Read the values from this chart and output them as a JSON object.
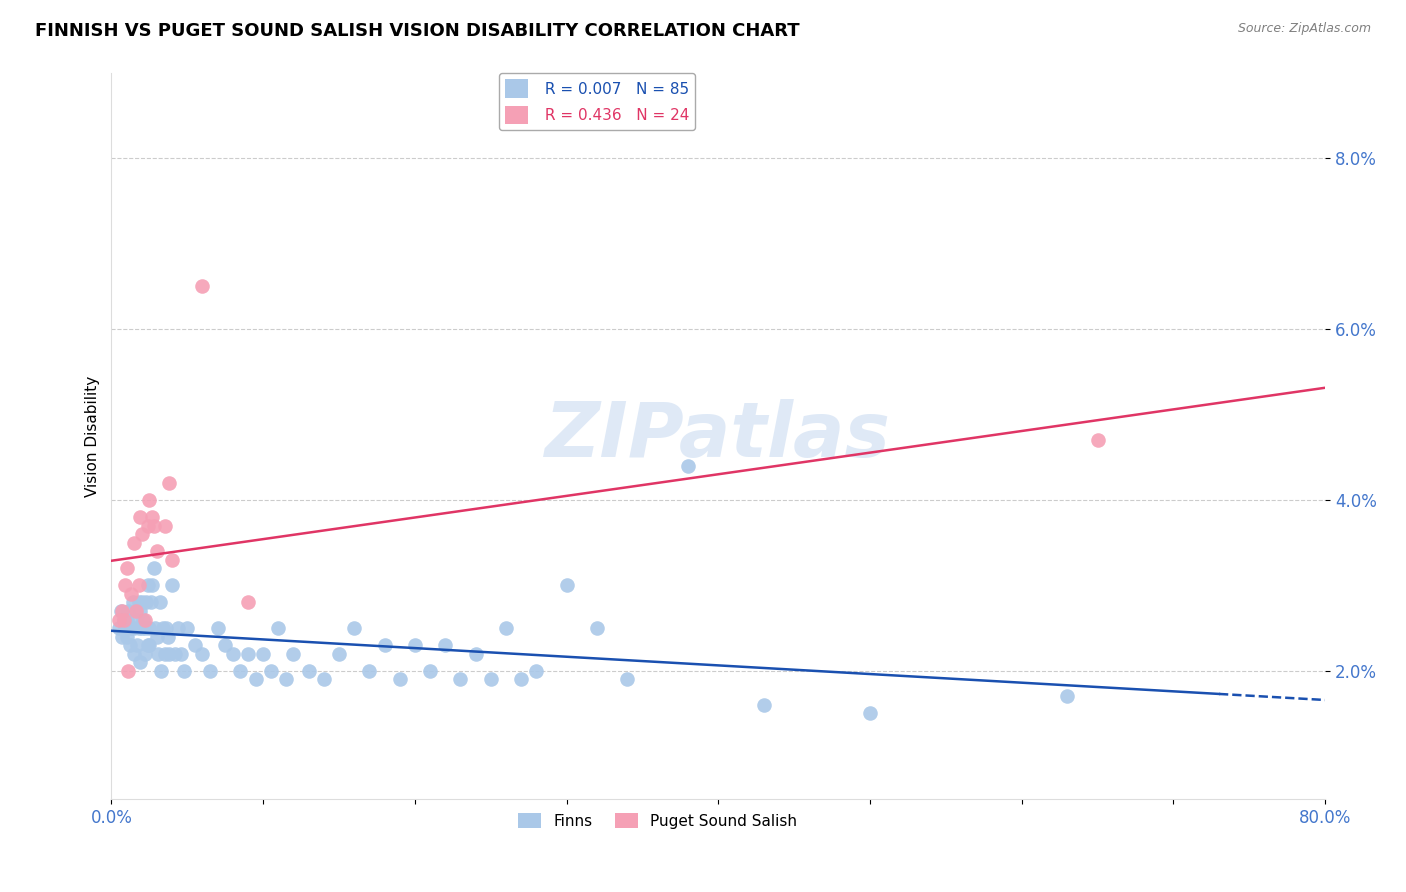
{
  "title": "FINNISH VS PUGET SOUND SALISH VISION DISABILITY CORRELATION CHART",
  "source": "Source: ZipAtlas.com",
  "ylabel": "Vision Disability",
  "xlim": [
    0.0,
    0.8
  ],
  "ylim": [
    0.005,
    0.09
  ],
  "yticks": [
    0.02,
    0.04,
    0.06,
    0.08
  ],
  "ytick_labels": [
    "2.0%",
    "4.0%",
    "6.0%",
    "8.0%"
  ],
  "xticks": [
    0.0,
    0.1,
    0.2,
    0.3,
    0.4,
    0.5,
    0.6,
    0.7,
    0.8
  ],
  "xtick_labels": [
    "0.0%",
    "",
    "",
    "",
    "",
    "",
    "",
    "",
    "80.0%"
  ],
  "blue_R": 0.007,
  "blue_N": 85,
  "pink_R": 0.436,
  "pink_N": 24,
  "blue_color": "#aac8e8",
  "pink_color": "#f5a0b5",
  "blue_line_color": "#1a50b0",
  "pink_line_color": "#e03565",
  "axis_color": "#4477cc",
  "watermark": "ZIPatlas",
  "blue_x": [
    0.005,
    0.006,
    0.007,
    0.008,
    0.009,
    0.01,
    0.01,
    0.011,
    0.012,
    0.013,
    0.014,
    0.015,
    0.015,
    0.016,
    0.017,
    0.018,
    0.018,
    0.019,
    0.019,
    0.02,
    0.02,
    0.021,
    0.022,
    0.022,
    0.023,
    0.024,
    0.024,
    0.025,
    0.025,
    0.026,
    0.027,
    0.028,
    0.029,
    0.03,
    0.031,
    0.032,
    0.033,
    0.034,
    0.035,
    0.036,
    0.037,
    0.038,
    0.04,
    0.042,
    0.044,
    0.046,
    0.048,
    0.05,
    0.055,
    0.06,
    0.065,
    0.07,
    0.075,
    0.08,
    0.085,
    0.09,
    0.095,
    0.1,
    0.105,
    0.11,
    0.115,
    0.12,
    0.13,
    0.14,
    0.15,
    0.16,
    0.17,
    0.18,
    0.19,
    0.2,
    0.21,
    0.22,
    0.23,
    0.24,
    0.25,
    0.26,
    0.27,
    0.28,
    0.3,
    0.32,
    0.34,
    0.38,
    0.43,
    0.5,
    0.63
  ],
  "blue_y": [
    0.025,
    0.027,
    0.024,
    0.026,
    0.025,
    0.026,
    0.024,
    0.027,
    0.023,
    0.025,
    0.028,
    0.025,
    0.022,
    0.026,
    0.023,
    0.028,
    0.025,
    0.027,
    0.021,
    0.025,
    0.028,
    0.026,
    0.025,
    0.022,
    0.028,
    0.03,
    0.023,
    0.025,
    0.023,
    0.028,
    0.03,
    0.032,
    0.025,
    0.024,
    0.022,
    0.028,
    0.02,
    0.025,
    0.022,
    0.025,
    0.024,
    0.022,
    0.03,
    0.022,
    0.025,
    0.022,
    0.02,
    0.025,
    0.023,
    0.022,
    0.02,
    0.025,
    0.023,
    0.022,
    0.02,
    0.022,
    0.019,
    0.022,
    0.02,
    0.025,
    0.019,
    0.022,
    0.02,
    0.019,
    0.022,
    0.025,
    0.02,
    0.023,
    0.019,
    0.023,
    0.02,
    0.023,
    0.019,
    0.022,
    0.019,
    0.025,
    0.019,
    0.02,
    0.03,
    0.025,
    0.019,
    0.044,
    0.016,
    0.015,
    0.017
  ],
  "pink_x": [
    0.005,
    0.007,
    0.008,
    0.009,
    0.01,
    0.011,
    0.013,
    0.015,
    0.016,
    0.018,
    0.019,
    0.02,
    0.022,
    0.024,
    0.025,
    0.027,
    0.028,
    0.03,
    0.035,
    0.038,
    0.04,
    0.06,
    0.09,
    0.65
  ],
  "pink_y": [
    0.026,
    0.027,
    0.026,
    0.03,
    0.032,
    0.02,
    0.029,
    0.035,
    0.027,
    0.03,
    0.038,
    0.036,
    0.026,
    0.037,
    0.04,
    0.038,
    0.037,
    0.034,
    0.037,
    0.042,
    0.033,
    0.065,
    0.028,
    0.047
  ],
  "background_color": "#ffffff",
  "grid_color": "#cccccc",
  "title_fontsize": 13,
  "legend_fontsize": 11,
  "ylabel_fontsize": 11,
  "watermark_color": "#c5d8f0",
  "watermark_fontsize": 55,
  "blue_line_end_x": 0.73
}
